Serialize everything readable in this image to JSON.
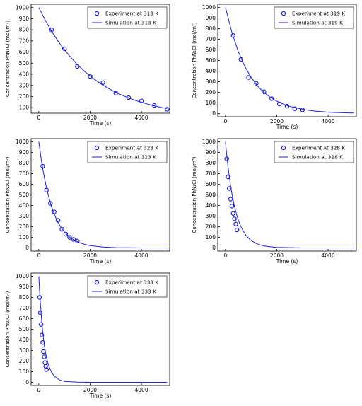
{
  "chart_data": [
    {
      "type": "scatter",
      "xlabel": "Time (s)",
      "ylabel": "Concentration PhN₂Cl (mol/m³)",
      "xlim": [
        -300,
        5100
      ],
      "ylim": [
        50,
        1030
      ],
      "xticks": [
        0,
        2000,
        4000
      ],
      "yticks": [
        100,
        200,
        300,
        400,
        500,
        600,
        700,
        800,
        900,
        1000
      ],
      "legend_placement": "top-right",
      "grid": false,
      "series": [
        {
          "name": "Experiment at 313 K",
          "kind": "markers",
          "x": [
            500,
            1000,
            1500,
            2000,
            2500,
            3000,
            3500,
            4000,
            4500,
            5000
          ],
          "y": [
            800,
            630,
            470,
            380,
            325,
            230,
            190,
            160,
            120,
            85
          ]
        },
        {
          "name": "Simulation at 313 K",
          "kind": "line",
          "x": [
            0,
            250,
            500,
            750,
            1000,
            1250,
            1500,
            1750,
            2000,
            2250,
            2500,
            2750,
            3000,
            3250,
            3500,
            3750,
            4000,
            4250,
            4500,
            4750,
            5000
          ],
          "y": [
            1000,
            887,
            787,
            698,
            620,
            550,
            488,
            433,
            384,
            341,
            302,
            268,
            238,
            211,
            187,
            166,
            148,
            131,
            116,
            103,
            92
          ]
        }
      ]
    },
    {
      "type": "scatter",
      "xlabel": "Time (s)",
      "ylabel": "Concentration PhN₂Cl (mol/m³)",
      "xlim": [
        -300,
        5100
      ],
      "ylim": [
        -30,
        1030
      ],
      "xticks": [
        0,
        2000,
        4000
      ],
      "yticks": [
        0,
        100,
        200,
        300,
        400,
        500,
        600,
        700,
        800,
        900,
        1000
      ],
      "legend_placement": "top-right",
      "grid": false,
      "series": [
        {
          "name": "Experiment at 319 K",
          "kind": "markers",
          "x": [
            300,
            600,
            900,
            1200,
            1500,
            1800,
            2100,
            2400,
            2700,
            3000
          ],
          "y": [
            735,
            510,
            340,
            285,
            205,
            140,
            90,
            70,
            45,
            35
          ]
        },
        {
          "name": "Simulation at 319 K",
          "kind": "line",
          "x": [
            0,
            250,
            500,
            750,
            1000,
            1250,
            1500,
            1750,
            2000,
            2250,
            2500,
            2750,
            3000,
            3250,
            3500,
            3750,
            4000,
            4250,
            4500,
            4750,
            5000
          ],
          "y": [
            1000,
            764,
            584,
            446,
            341,
            260,
            199,
            152,
            116,
            89,
            68,
            52,
            40,
            30,
            23,
            18,
            13,
            10,
            8,
            6,
            5
          ]
        }
      ]
    },
    {
      "type": "scatter",
      "xlabel": "Time (s)",
      "ylabel": "Concentration PhN₂Cl (mol/m³)",
      "xlim": [
        -300,
        5100
      ],
      "ylim": [
        -30,
        1030
      ],
      "xticks": [
        0,
        2000,
        4000
      ],
      "yticks": [
        0,
        100,
        200,
        300,
        400,
        500,
        600,
        700,
        800,
        900,
        1000
      ],
      "legend_placement": "top-right",
      "grid": false,
      "series": [
        {
          "name": "Experiment at 323 K",
          "kind": "markers",
          "x": [
            150,
            300,
            450,
            600,
            750,
            900,
            1050,
            1200,
            1350,
            1500
          ],
          "y": [
            770,
            545,
            420,
            340,
            260,
            175,
            130,
            100,
            80,
            65
          ]
        },
        {
          "name": "Simulation at 323 K",
          "kind": "line",
          "x": [
            0,
            100,
            200,
            300,
            400,
            500,
            600,
            700,
            800,
            900,
            1000,
            1200,
            1400,
            1600,
            1800,
            2000,
            2500,
            3000,
            3500,
            4000,
            4500,
            5000
          ],
          "y": [
            1000,
            827,
            684,
            566,
            468,
            387,
            320,
            265,
            219,
            181,
            150,
            103,
            70,
            48,
            33,
            22,
            9,
            3,
            1,
            0,
            0,
            0
          ]
        }
      ]
    },
    {
      "type": "scatter",
      "xlabel": "Time (s)",
      "ylabel": "Concentration PhN₂Cl (mol/m³)",
      "xlim": [
        -300,
        5100
      ],
      "ylim": [
        -30,
        1030
      ],
      "xticks": [
        0,
        2000,
        4000
      ],
      "yticks": [
        0,
        100,
        200,
        300,
        400,
        500,
        600,
        700,
        800,
        900,
        1000
      ],
      "legend_placement": "top-right",
      "grid": false,
      "series": [
        {
          "name": "Experiment at 328 K",
          "kind": "markers",
          "x": [
            50,
            100,
            150,
            200,
            250,
            300,
            350,
            400,
            450
          ],
          "y": [
            840,
            670,
            560,
            460,
            395,
            325,
            275,
            225,
            170
          ]
        },
        {
          "name": "Simulation at 328 K",
          "kind": "line",
          "x": [
            0,
            50,
            100,
            150,
            200,
            250,
            300,
            350,
            400,
            450,
            500,
            600,
            700,
            800,
            1000,
            1200,
            1500,
            2000,
            3000,
            4000,
            5000
          ],
          "y": [
            1000,
            875,
            767,
            671,
            587,
            514,
            450,
            394,
            345,
            302,
            264,
            202,
            155,
            119,
            70,
            41,
            18,
            5,
            0,
            0,
            0
          ]
        }
      ]
    },
    {
      "type": "scatter",
      "xlabel": "Time (s)",
      "ylabel": "Concentration PhN₂Cl (mol/m³)",
      "xlim": [
        -300,
        5100
      ],
      "ylim": [
        -30,
        1030
      ],
      "xticks": [
        0,
        2000,
        4000
      ],
      "yticks": [
        0,
        100,
        200,
        300,
        400,
        500,
        600,
        700,
        800,
        900,
        1000
      ],
      "legend_placement": "top-right",
      "grid": false,
      "series": [
        {
          "name": "Experiment at 333 K",
          "kind": "markers",
          "x": [
            30,
            60,
            90,
            120,
            150,
            180,
            210,
            240,
            270,
            300
          ],
          "y": [
            800,
            655,
            545,
            445,
            375,
            290,
            240,
            185,
            150,
            120
          ]
        },
        {
          "name": "Simulation at 333 K",
          "kind": "line",
          "x": [
            0,
            30,
            60,
            90,
            120,
            150,
            180,
            210,
            240,
            270,
            300,
            350,
            400,
            500,
            600,
            800,
            1000,
            1500,
            2000,
            3000,
            4000,
            5000
          ],
          "y": [
            1000,
            865,
            747,
            646,
            559,
            483,
            418,
            361,
            312,
            270,
            234,
            186,
            148,
            93,
            59,
            23,
            9,
            1,
            0,
            0,
            0,
            0
          ]
        }
      ]
    }
  ]
}
